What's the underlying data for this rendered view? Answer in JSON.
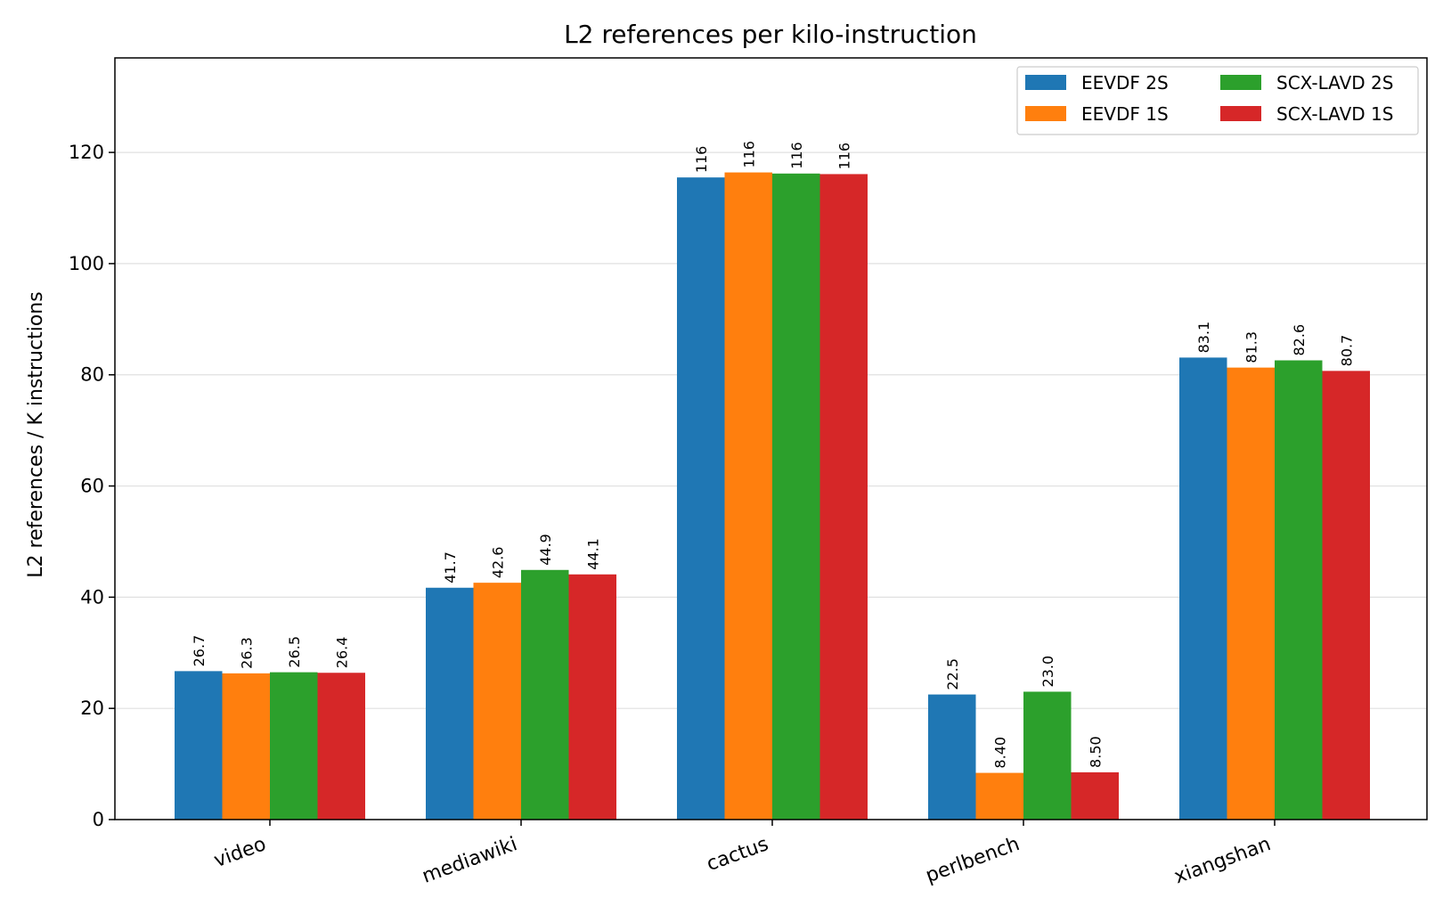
{
  "chart_data": {
    "type": "bar",
    "title": "L2 references per kilo-instruction",
    "xlabel": "",
    "ylabel": "L2 references / K instructions",
    "categories": [
      "video",
      "mediawiki",
      "cactus",
      "perlbench",
      "xiangshan"
    ],
    "series": [
      {
        "name": "EEVDF 2S",
        "color": "#1f77b4",
        "values": [
          26.7,
          41.7,
          115.5,
          22.5,
          83.1
        ],
        "labels": [
          "26.7",
          "41.7",
          "116",
          "22.5",
          "83.1"
        ]
      },
      {
        "name": "EEVDF 1S",
        "color": "#ff7f0e",
        "values": [
          26.3,
          42.6,
          116.4,
          8.4,
          81.3
        ],
        "labels": [
          "26.3",
          "42.6",
          "116",
          "8.40",
          "81.3"
        ]
      },
      {
        "name": "SCX-LAVD 2S",
        "color": "#2ca02c",
        "values": [
          26.5,
          44.9,
          116.2,
          23.0,
          82.6
        ],
        "labels": [
          "26.5",
          "44.9",
          "116",
          "23.0",
          "82.6"
        ]
      },
      {
        "name": "SCX-LAVD 1S",
        "color": "#d62728",
        "values": [
          26.4,
          44.1,
          116.1,
          8.5,
          80.7
        ],
        "labels": [
          "26.4",
          "44.1",
          "116",
          "8.50",
          "80.7"
        ]
      }
    ],
    "ylim": [
      0,
      137
    ],
    "yticks": [
      0,
      20,
      40,
      60,
      80,
      100,
      120
    ],
    "grid": "horizontal",
    "legend_position": "top-right",
    "legend_columns": 2
  }
}
